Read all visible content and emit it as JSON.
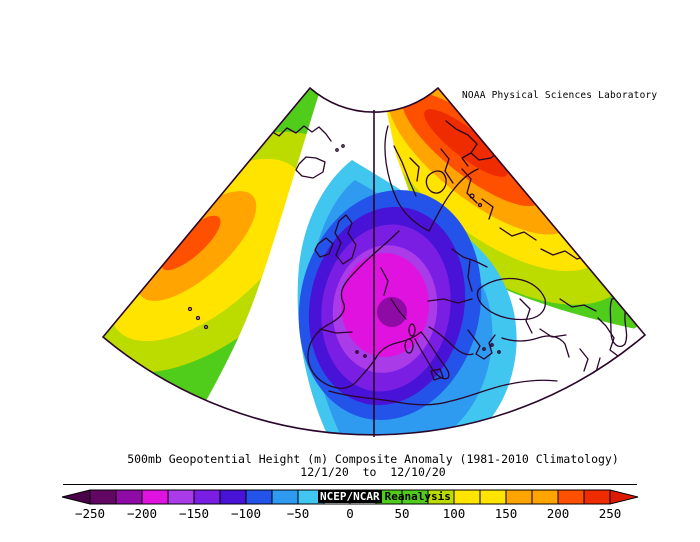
{
  "header": {
    "lab": "NOAA Physical Sciences Laboratory"
  },
  "caption": {
    "line1": "500mb Geopotential Height (m) Composite Anomaly (1981-2010 Climatology)",
    "line2": "12/1/20  to  12/10/20"
  },
  "overlay": {
    "dataset": "NCEP/NCAR",
    "dataset2": "Reanalysis"
  },
  "colorbar": {
    "tick_labels": [
      "−250",
      "−200",
      "−150",
      "−100",
      "−50",
      "0",
      "50",
      "100",
      "150",
      "200",
      "250"
    ],
    "segment_colors": [
      "#620862",
      "#8F0BA5",
      "#E012E0",
      "#A93BE8",
      "#7B1EE4",
      "#4813D6",
      "#2353E8",
      "#2E9BF0",
      "#41C6F0",
      "#FFFFFF",
      "#FFFFFF",
      "#50CC1A",
      "#50CC1A",
      "#BCDC00",
      "#FFE400",
      "#FFE400",
      "#FFA400",
      "#FFA400",
      "#FF5000",
      "#EE2C00"
    ],
    "left_tip_color": "#4A0348",
    "right_tip_color": "#DD1A00",
    "border_color": "#000000"
  },
  "map": {
    "background": "#FFFFFF",
    "outline_color": "#2A062A",
    "coastline_color": "#2A062A",
    "meridian_color": "#2A062A",
    "negative_rings": [
      "#41C6F0",
      "#2E9BF0",
      "#2353E8",
      "#4813D6",
      "#7B1EE4",
      "#A93BE8",
      "#E012E0",
      "#8F0BA5"
    ],
    "atlantic_rings": [
      "#50CC1A",
      "#BCDC00",
      "#FFE400",
      "#FFA400",
      "#FF5000"
    ],
    "scandinavia_rings": [
      "#50CC1A",
      "#BCDC00",
      "#FFE400",
      "#FFA400",
      "#FF5000",
      "#EE2C00"
    ]
  },
  "chart_data": {
    "type": "heatmap",
    "title": "500mb Geopotential Height (m) Composite Anomaly (1981-2010 Climatology)",
    "subtitle": "12/1/20 to 12/10/20",
    "source_label": "NOAA Physical Sciences Laboratory",
    "dataset_label": "NCEP/NCAR Reanalysis",
    "units": "m",
    "variable": "500mb geopotential height anomaly",
    "region": "North Atlantic / Europe polar-stereographic sector",
    "colorbar_ticks": [
      -250,
      -200,
      -150,
      -100,
      -50,
      0,
      50,
      100,
      150,
      200,
      250
    ],
    "colorbar_range": [
      -250,
      250
    ],
    "contour_interval_m": 25,
    "anomaly_centers": [
      {
        "name": "central North Atlantic positive anomaly",
        "approx_max_m": 210,
        "extent": "elongated SW-NE over the mid-Atlantic"
      },
      {
        "name": "western Europe negative anomaly",
        "approx_min_m": -215,
        "extent": "centered near France/western Mediterranean covering UK, Iberia, central Europe and NW Africa"
      },
      {
        "name": "northern Scandinavia / NW Russia positive anomaly",
        "approx_max_m": 240,
        "extent": "Scandinavia, Kola Peninsula and NW Russia"
      }
    ]
  }
}
